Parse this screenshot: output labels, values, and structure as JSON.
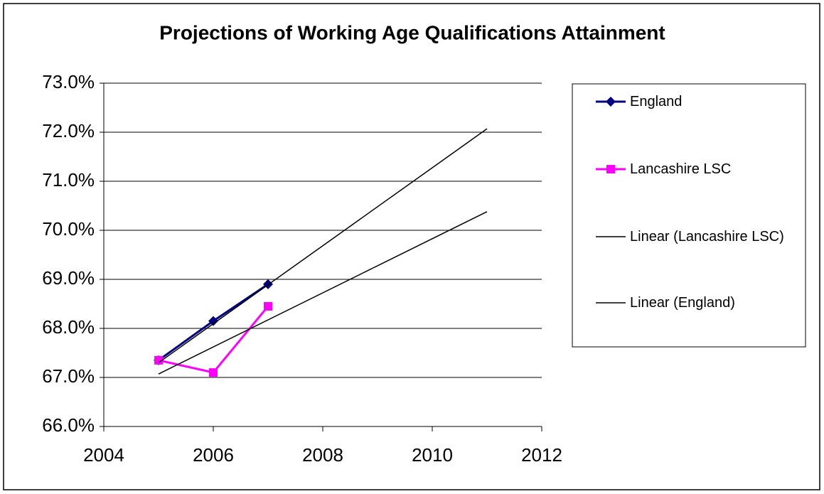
{
  "chart_data": {
    "type": "line",
    "title": "Projections of Working Age Qualifications Attainment",
    "xlim": [
      2004,
      2012
    ],
    "xticks": [
      2004,
      2006,
      2008,
      2010,
      2012
    ],
    "ylim": [
      66,
      73
    ],
    "yticks": [
      {
        "value": 66,
        "label": "66.0%"
      },
      {
        "value": 67,
        "label": "67.0%"
      },
      {
        "value": 68,
        "label": "68.0%"
      },
      {
        "value": 69,
        "label": "69.0%"
      },
      {
        "value": 70,
        "label": "70.0%"
      },
      {
        "value": 71,
        "label": "71.0%"
      },
      {
        "value": 72,
        "label": "72.0%"
      },
      {
        "value": 73,
        "label": "73.0%"
      }
    ],
    "grid": true,
    "legend": "right",
    "series": [
      {
        "name": "England",
        "color": "#000080",
        "marker": "diamond",
        "x": [
          2005,
          2006,
          2007
        ],
        "values": [
          67.35,
          68.15,
          68.9
        ]
      },
      {
        "name": "Lancashire LSC",
        "color": "#ff00ff",
        "marker": "square",
        "x": [
          2005,
          2006,
          2007
        ],
        "values": [
          67.35,
          67.1,
          68.45
        ]
      },
      {
        "name": "Linear (Lancashire LSC)",
        "color": "#000000",
        "x": [
          2005,
          2011
        ],
        "values": [
          67.07,
          70.38
        ]
      },
      {
        "name": "Linear (England)",
        "color": "#000000",
        "x": [
          2005,
          2011
        ],
        "values": [
          67.3,
          72.07
        ]
      }
    ]
  }
}
